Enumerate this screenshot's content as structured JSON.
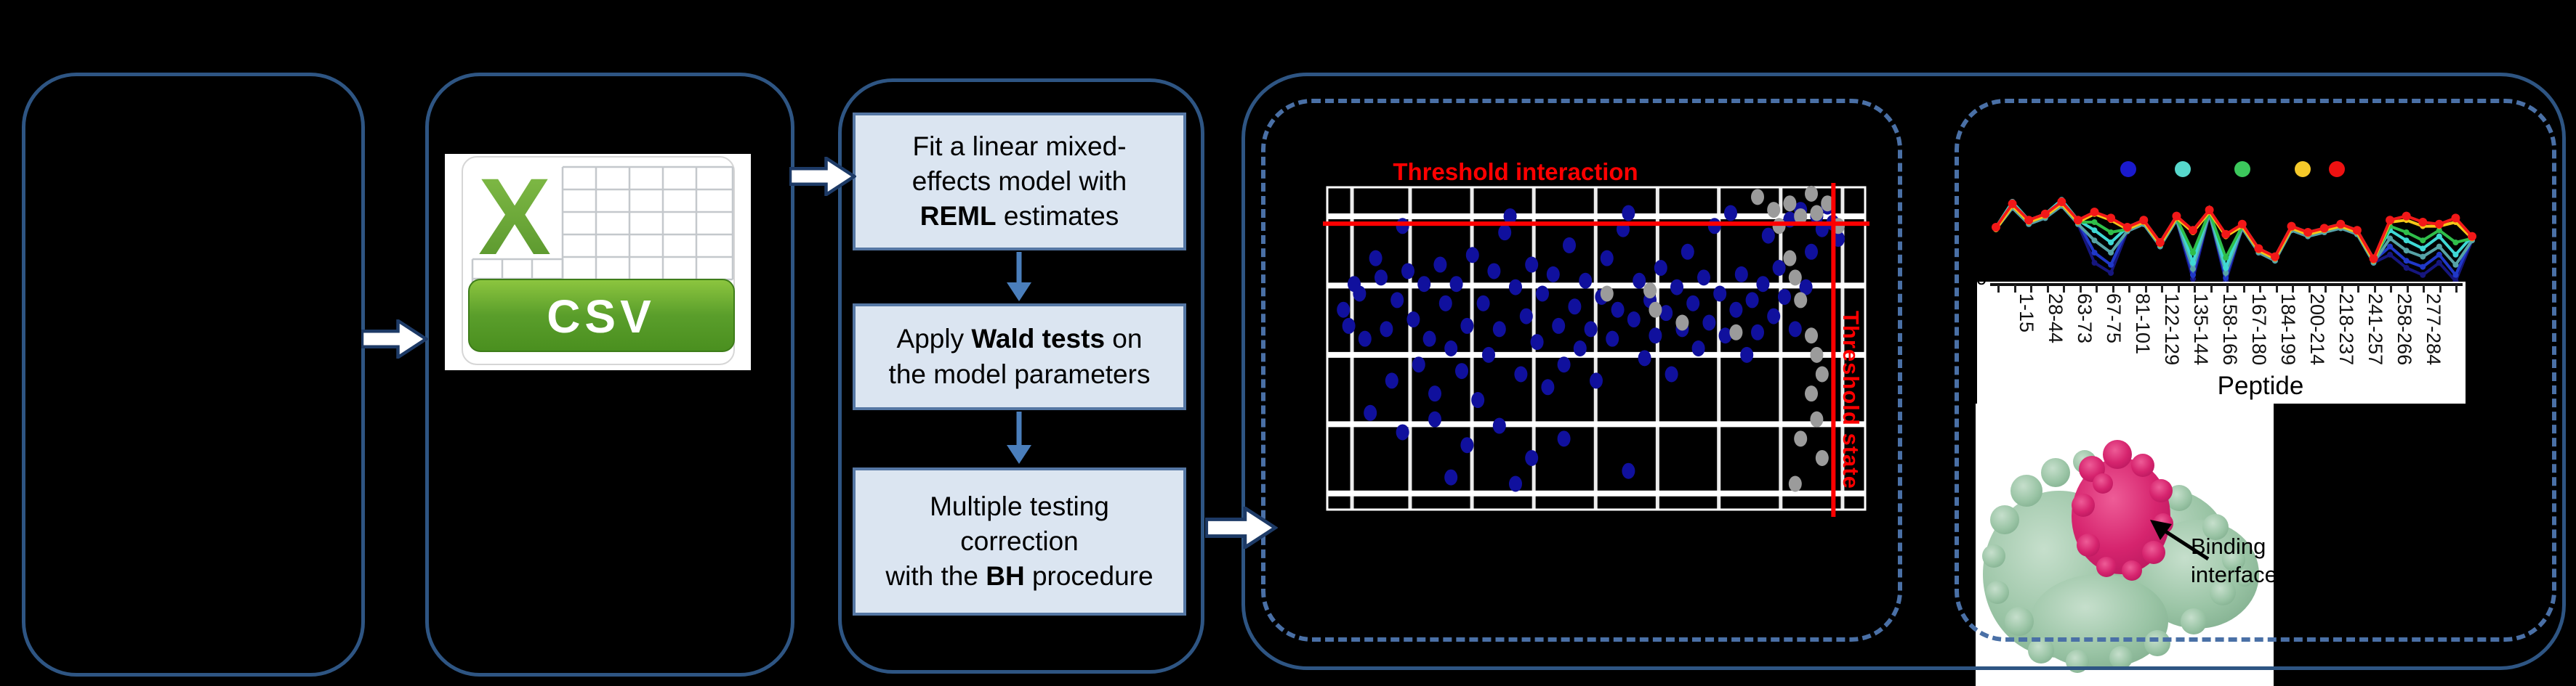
{
  "panels": {
    "input": {},
    "csv": {
      "icon_label": "CSV"
    },
    "model": {
      "boxes": [
        {
          "segments": [
            {
              "t": "Fit a linear mixed-effects model with "
            },
            {
              "t": "REML",
              "bold": true
            },
            {
              "t": " estimates"
            }
          ]
        },
        {
          "segments": [
            {
              "t": "Apply "
            },
            {
              "t": "Wald tests",
              "bold": true
            },
            {
              "t": " on the model parameters"
            }
          ]
        },
        {
          "segments": [
            {
              "t": "Multiple testing correction",
              "br": true
            },
            {
              "t": "with the "
            },
            {
              "t": "BH",
              "bold": true
            },
            {
              "t": " procedure"
            }
          ]
        }
      ]
    },
    "result": {
      "binding_label": "Binding interface"
    }
  },
  "colors": {
    "panel_border": "#2e5583",
    "dashed_border": "#4a70a6",
    "flow_box_fill": "#dbe5f1",
    "flow_box_border": "#5577a4",
    "flow_arrow": "#4a7ebb",
    "threshold_red": "#ff0000",
    "scatter_blue": "#10109d",
    "scatter_gray": "#9b9b9b",
    "protein_green": "#9ac4a5",
    "protein_magenta": "#d6246e",
    "csv_green": "#5a9a28"
  },
  "chart_data": [
    {
      "type": "scatter",
      "title": "Threshold interaction",
      "h_line_label": "Threshold interaction",
      "v_line_label": "Threshold state",
      "h_line_y_pct": 11.3,
      "v_line_x_pct": 94.1,
      "grid_v_pct": [
        4.6,
        15.4,
        26.9,
        38.4,
        49.9,
        61.4,
        72.8,
        84.3,
        95.8
      ],
      "grid_h_pct": [
        9,
        30.5,
        52,
        73.5,
        95
      ],
      "points_blue_pct": [
        [
          3,
          38
        ],
        [
          4,
          43
        ],
        [
          5,
          30
        ],
        [
          6,
          33
        ],
        [
          7,
          47
        ],
        [
          9,
          22
        ],
        [
          10,
          28
        ],
        [
          11,
          44
        ],
        [
          12,
          60
        ],
        [
          13,
          35
        ],
        [
          14,
          12
        ],
        [
          15,
          26
        ],
        [
          16,
          41
        ],
        [
          17,
          55
        ],
        [
          18,
          30
        ],
        [
          19,
          47
        ],
        [
          20,
          64
        ],
        [
          21,
          24
        ],
        [
          22,
          36
        ],
        [
          23,
          50
        ],
        [
          24,
          30
        ],
        [
          25,
          57
        ],
        [
          26,
          43
        ],
        [
          27,
          21
        ],
        [
          28,
          66
        ],
        [
          29,
          36
        ],
        [
          30,
          52
        ],
        [
          31,
          26
        ],
        [
          32,
          44
        ],
        [
          33,
          14
        ],
        [
          34,
          9
        ],
        [
          35,
          31
        ],
        [
          36,
          58
        ],
        [
          37,
          40
        ],
        [
          38,
          24
        ],
        [
          39,
          48
        ],
        [
          40,
          33
        ],
        [
          41,
          62
        ],
        [
          42,
          27
        ],
        [
          43,
          43
        ],
        [
          44,
          55
        ],
        [
          45,
          18
        ],
        [
          46,
          37
        ],
        [
          47,
          50
        ],
        [
          48,
          29
        ],
        [
          49,
          44
        ],
        [
          50,
          60
        ],
        [
          51,
          34
        ],
        [
          52,
          22
        ],
        [
          53,
          47
        ],
        [
          54,
          38
        ],
        [
          55,
          13
        ],
        [
          56,
          8
        ],
        [
          57,
          41
        ],
        [
          58,
          29
        ],
        [
          59,
          53
        ],
        [
          60,
          35
        ],
        [
          61,
          46
        ],
        [
          62,
          25
        ],
        [
          63,
          39
        ],
        [
          64,
          58
        ],
        [
          65,
          31
        ],
        [
          66,
          44
        ],
        [
          67,
          20
        ],
        [
          68,
          36
        ],
        [
          69,
          50
        ],
        [
          70,
          28
        ],
        [
          71,
          42
        ],
        [
          72,
          12
        ],
        [
          73,
          33
        ],
        [
          74,
          46
        ],
        [
          75,
          8
        ],
        [
          76,
          38
        ],
        [
          77,
          27
        ],
        [
          78,
          52
        ],
        [
          79,
          35
        ],
        [
          80,
          45
        ],
        [
          81,
          30
        ],
        [
          82,
          15
        ],
        [
          83,
          40
        ],
        [
          84,
          25
        ],
        [
          85,
          34
        ],
        [
          86,
          10
        ],
        [
          87,
          44
        ],
        [
          88,
          7
        ],
        [
          89,
          31
        ],
        [
          90,
          20
        ],
        [
          91,
          9
        ],
        [
          92,
          13
        ],
        [
          93,
          6
        ],
        [
          94,
          11
        ],
        [
          95,
          16
        ],
        [
          8,
          70
        ],
        [
          14,
          76
        ],
        [
          20,
          72
        ],
        [
          26,
          80
        ],
        [
          32,
          74
        ],
        [
          38,
          84
        ],
        [
          44,
          78
        ],
        [
          56,
          88
        ],
        [
          35,
          92
        ],
        [
          23,
          90
        ]
      ],
      "points_gray_pct": [
        [
          80,
          3
        ],
        [
          83,
          7
        ],
        [
          84,
          12
        ],
        [
          86,
          5
        ],
        [
          88,
          9
        ],
        [
          90,
          2
        ],
        [
          91,
          8
        ],
        [
          93,
          5
        ],
        [
          95,
          12
        ],
        [
          60,
          32
        ],
        [
          61,
          38
        ],
        [
          66,
          42
        ],
        [
          52,
          33
        ],
        [
          86,
          22
        ],
        [
          87,
          28
        ],
        [
          88,
          35
        ],
        [
          90,
          46
        ],
        [
          91,
          52
        ],
        [
          92,
          58
        ],
        [
          90,
          64
        ],
        [
          91,
          72
        ],
        [
          88,
          78
        ],
        [
          92,
          84
        ],
        [
          87,
          92
        ],
        [
          76,
          45
        ]
      ]
    },
    {
      "type": "line",
      "xlabel": "Peptide",
      "y_tick_labels": [
        "0.0"
      ],
      "x_tick_labels": [
        "1-15",
        "28-44",
        "63-73",
        "67-75",
        "81-101",
        "122-129",
        "135-144",
        "158-166",
        "167-180",
        "184-199",
        "200-214",
        "218-237",
        "241-257",
        "258-266",
        "277-284"
      ],
      "legend_dot_colors": [
        "#1a1acd",
        "#57d8cc",
        "#3cc85c",
        "#f5c92a",
        "#ee1111"
      ],
      "series": [
        {
          "name": "navy",
          "color": "#16167e",
          "values": [
            0.53,
            0.74,
            0.58,
            0.64,
            0.76,
            0.58,
            0.2,
            0.1,
            0.51,
            0.58,
            0.36,
            0.62,
            0.04,
            0.68,
            0.02,
            0.54,
            0.3,
            0.22,
            0.52,
            0.46,
            0.5,
            0.54,
            0.48,
            0.2,
            0.28,
            0.15,
            0.08,
            0.2,
            0.02,
            0.42
          ]
        },
        {
          "name": "blue",
          "color": "#2038c8",
          "values": [
            0.55,
            0.76,
            0.6,
            0.66,
            0.78,
            0.6,
            0.3,
            0.18,
            0.53,
            0.6,
            0.38,
            0.64,
            0.08,
            0.7,
            0.05,
            0.56,
            0.32,
            0.24,
            0.54,
            0.48,
            0.52,
            0.56,
            0.5,
            0.22,
            0.36,
            0.22,
            0.16,
            0.28,
            0.08,
            0.44
          ]
        },
        {
          "name": "teal",
          "color": "#56a3a6",
          "values": [
            0.53,
            0.74,
            0.58,
            0.64,
            0.76,
            0.58,
            0.42,
            0.3,
            0.51,
            0.58,
            0.36,
            0.62,
            0.14,
            0.68,
            0.1,
            0.54,
            0.3,
            0.22,
            0.52,
            0.46,
            0.5,
            0.54,
            0.48,
            0.2,
            0.44,
            0.32,
            0.26,
            0.36,
            0.18,
            0.42
          ]
        },
        {
          "name": "cyan",
          "color": "#3fd8d4",
          "values": [
            0.55,
            0.8,
            0.62,
            0.68,
            0.82,
            0.62,
            0.52,
            0.4,
            0.55,
            0.62,
            0.4,
            0.66,
            0.2,
            0.72,
            0.15,
            0.58,
            0.34,
            0.26,
            0.56,
            0.5,
            0.54,
            0.58,
            0.52,
            0.24,
            0.52,
            0.42,
            0.34,
            0.46,
            0.28,
            0.46
          ]
        },
        {
          "name": "green",
          "color": "#2fbe4a",
          "values": [
            0.53,
            0.76,
            0.6,
            0.66,
            0.78,
            0.6,
            0.6,
            0.5,
            0.53,
            0.6,
            0.38,
            0.64,
            0.3,
            0.7,
            0.25,
            0.56,
            0.32,
            0.24,
            0.54,
            0.48,
            0.52,
            0.56,
            0.5,
            0.22,
            0.56,
            0.5,
            0.42,
            0.52,
            0.4,
            0.44
          ]
        },
        {
          "name": "yellow",
          "color": "#f5c518",
          "values": [
            0.53,
            0.76,
            0.6,
            0.66,
            0.78,
            0.6,
            0.68,
            0.62,
            0.53,
            0.6,
            0.38,
            0.64,
            0.5,
            0.7,
            0.46,
            0.56,
            0.32,
            0.24,
            0.54,
            0.48,
            0.52,
            0.56,
            0.5,
            0.22,
            0.6,
            0.62,
            0.56,
            0.56,
            0.6,
            0.44
          ]
        },
        {
          "name": "red",
          "color": "#f21818",
          "values": [
            0.55,
            0.78,
            0.62,
            0.68,
            0.8,
            0.62,
            0.7,
            0.64,
            0.55,
            0.62,
            0.4,
            0.66,
            0.52,
            0.72,
            0.48,
            0.58,
            0.34,
            0.26,
            0.56,
            0.5,
            0.54,
            0.58,
            0.52,
            0.24,
            0.62,
            0.66,
            0.6,
            0.58,
            0.64,
            0.46
          ]
        }
      ]
    }
  ]
}
